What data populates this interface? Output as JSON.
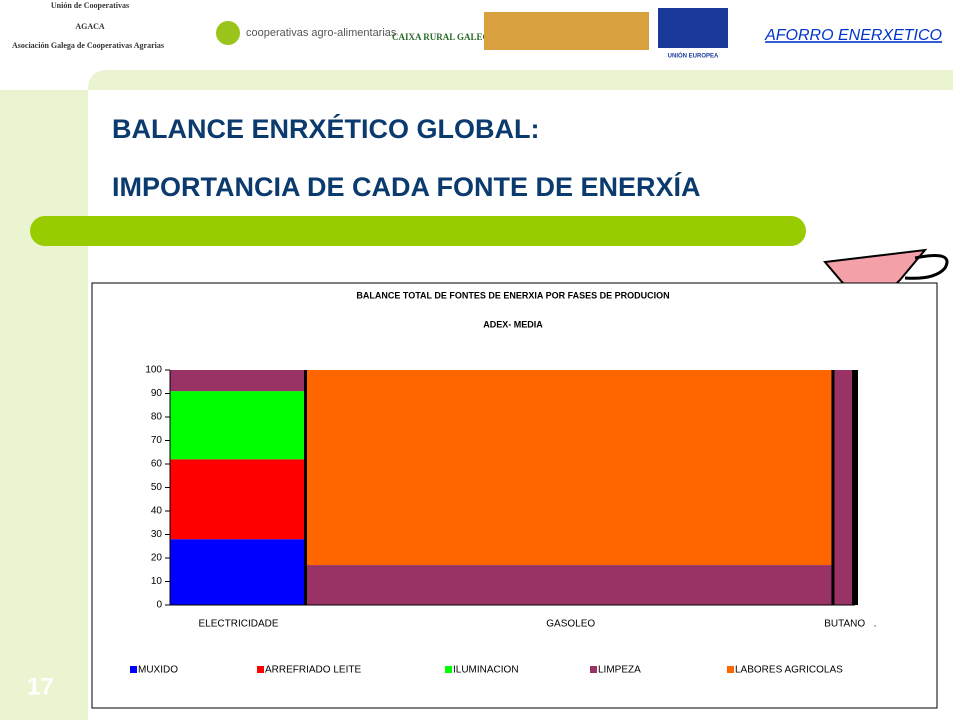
{
  "header": {
    "logos": [
      "Unión de Cooperativas",
      "AGACA",
      "Asociación Galega de Cooperativas Agrarias",
      "cooperativas agro-alimentarias",
      "CAIXA RURAL GALEGA",
      "UNIÓN EUROPEA"
    ],
    "link": "AFORRO ENERXETICO"
  },
  "slide": {
    "title_line1": "BALANCE ENRXÉTICO GLOBAL:",
    "title_line2": "IMPORTANCIA DE CADA FONTE DE ENERXÍA",
    "number": "17"
  },
  "chart_data": {
    "type": "marimekko",
    "title": "BALANCE TOTAL DE FONTES DE ENERXIA POR FASES DE PRODUCION",
    "subtitle": "ADEX- MEDIA",
    "categories": [
      "ELECTRICIDADE",
      "GASOLEO",
      "BUTANO",
      "."
    ],
    "widths": [
      20,
      77,
      3,
      0
    ],
    "series": [
      {
        "name": "MUXIDO",
        "color": "#0000ff",
        "values": [
          28,
          0,
          0,
          null
        ]
      },
      {
        "name": "ARREFRIADO LEITE",
        "color": "#ff0000",
        "values": [
          34,
          0,
          0,
          null
        ]
      },
      {
        "name": "ILUMINACION",
        "color": "#00ff00",
        "values": [
          29,
          0,
          0,
          null
        ]
      },
      {
        "name": "LIMPEZA",
        "color": "#993366",
        "values": [
          9,
          17,
          100,
          null
        ]
      },
      {
        "name": "LABORES AGRICOLAS",
        "color": "#ff6600",
        "values": [
          0,
          83,
          0,
          null
        ]
      }
    ],
    "ylim": [
      0,
      100
    ],
    "yticks": [
      0,
      10,
      20,
      30,
      40,
      50,
      60,
      70,
      80,
      90,
      100
    ],
    "legend": "bottom"
  }
}
